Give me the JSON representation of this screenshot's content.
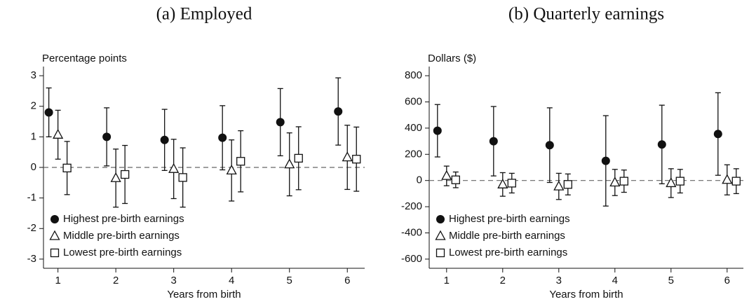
{
  "chart_data": [
    {
      "type": "errorbar",
      "title": "(a) Employed",
      "ylabel": "Percentage points",
      "xlabel": "Years from birth",
      "x": [
        1,
        2,
        3,
        4,
        5,
        6
      ],
      "xlim": [
        0.75,
        6.3
      ],
      "xticks": [
        1,
        2,
        3,
        4,
        5,
        6
      ],
      "ylim": [
        -3.3,
        3.3
      ],
      "yticks": [
        -3,
        -2,
        -1,
        0,
        1,
        2,
        3
      ],
      "hline": 0,
      "legend": "lower left",
      "series": [
        {
          "name": "Highest pre-birth earnings",
          "marker": "circle",
          "color": "#111111",
          "values": [
            1.8,
            1.0,
            0.9,
            0.97,
            1.48,
            1.83
          ],
          "errors": [
            0.8,
            0.95,
            1.0,
            1.05,
            1.1,
            1.1
          ]
        },
        {
          "name": "Middle pre-birth earnings",
          "marker": "triangle",
          "color": "#111111",
          "values": [
            1.07,
            -0.35,
            -0.05,
            -0.1,
            0.1,
            0.33
          ],
          "errors": [
            0.8,
            0.95,
            0.97,
            1.0,
            1.03,
            1.05
          ]
        },
        {
          "name": "Lowest pre-birth earnings",
          "marker": "square",
          "color": "#111111",
          "values": [
            -0.02,
            -0.23,
            -0.33,
            0.2,
            0.3,
            0.27
          ],
          "errors": [
            0.87,
            0.95,
            0.97,
            1.0,
            1.03,
            1.05
          ]
        }
      ]
    },
    {
      "type": "errorbar",
      "title": "(b) Quarterly earnings",
      "ylabel": "Dollars ($)",
      "xlabel": "Years from birth",
      "x": [
        1,
        2,
        3,
        4,
        5,
        6
      ],
      "xlim": [
        0.69,
        6.29
      ],
      "xticks": [
        1,
        2,
        3,
        4,
        5,
        6
      ],
      "ylim": [
        -670,
        870
      ],
      "yticks": [
        -600,
        -400,
        -200,
        0,
        200,
        400,
        600,
        800
      ],
      "hline": 0,
      "legend": "lower left",
      "series": [
        {
          "name": "Highest pre-birth earnings",
          "marker": "circle",
          "color": "#111111",
          "values": [
            380,
            300,
            270,
            150,
            275,
            355
          ],
          "errors": [
            200,
            265,
            285,
            345,
            300,
            315
          ]
        },
        {
          "name": "Middle pre-birth earnings",
          "marker": "triangle",
          "color": "#111111",
          "values": [
            35,
            -30,
            -45,
            -15,
            -20,
            5
          ],
          "errors": [
            75,
            90,
            100,
            100,
            110,
            115
          ]
        },
        {
          "name": "Lowest pre-birth earnings",
          "marker": "square",
          "color": "#111111",
          "values": [
            5,
            -20,
            -30,
            -5,
            -5,
            -5
          ],
          "errors": [
            60,
            75,
            80,
            85,
            90,
            95
          ]
        }
      ]
    }
  ]
}
